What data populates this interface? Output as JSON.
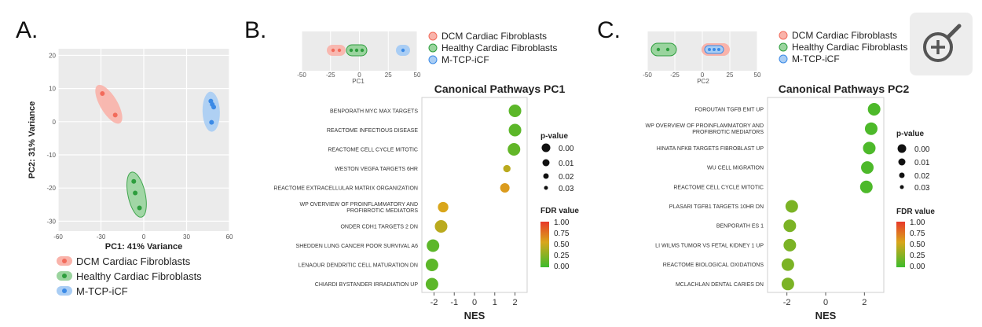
{
  "panels": {
    "a": {
      "letter": "A.",
      "xlabel": "PC1: 41% Variance",
      "ylabel": "PC2: 31% Variance",
      "xticks": [
        "-60",
        "-30",
        "0",
        "30",
        "60"
      ],
      "yticks": [
        "20",
        "10",
        "0",
        "-10",
        "-20",
        "-30"
      ],
      "legend": [
        "DCM Cardiac Fibroblasts",
        "Healthy Cardiac Fibroblasts",
        "M-TCP-iCF"
      ]
    },
    "b": {
      "letter": "B.",
      "mini_xlabel": "PC1",
      "mini_xticks": [
        "-50",
        "-25",
        "0",
        "25",
        "50"
      ],
      "legend": [
        "DCM Cardiac Fibroblasts",
        "Healthy Cardiac Fibroblasts",
        "M-TCP-iCF"
      ],
      "title": "Canonical Pathways PC1",
      "xlabel": "NES",
      "nes_ticks": [
        "-2",
        "-1",
        "0",
        "1",
        "2"
      ]
    },
    "c": {
      "letter": "C.",
      "mini_xlabel": "PC2",
      "mini_xticks": [
        "-50",
        "-25",
        "0",
        "25",
        "50"
      ],
      "legend": [
        "DCM Cardiac Fibroblasts",
        "Healthy Cardiac Fibroblasts",
        "M-TCP-iCF"
      ],
      "title": "Canonical Pathways PC2",
      "xlabel": "NES",
      "nes_ticks": [
        "-2",
        "0",
        "2"
      ]
    }
  },
  "keys": {
    "pvalue_title": "p-value",
    "pvalue_entries": [
      "0.00",
      "0.01",
      "0.02",
      "0.03"
    ],
    "fdr_title": "FDR value",
    "fdr_ticks": [
      "1.00",
      "0.75",
      "0.50",
      "0.25",
      "0.00"
    ]
  },
  "colors": {
    "dcm": "#f26b5b",
    "healthy": "#2e9e3e",
    "mtcp": "#3b8ae6",
    "fdr_high": "#e8392a",
    "fdr_mid": "#c9a21a",
    "fdr_low": "#3dbb2c"
  },
  "toolbar": {
    "zoom_icon": "zoom-in-icon"
  },
  "chart_data": [
    {
      "type": "scatter",
      "panel": "A",
      "xlabel": "PC1: 41% Variance",
      "ylabel": "PC2: 31% Variance",
      "xlim": [
        -60,
        60
      ],
      "ylim": [
        -33,
        22
      ],
      "series": [
        {
          "name": "DCM Cardiac Fibroblasts",
          "points": [
            [
              -29,
              8.5
            ],
            [
              -20,
              2
            ]
          ]
        },
        {
          "name": "Healthy Cardiac Fibroblasts",
          "points": [
            [
              -7,
              -18
            ],
            [
              -6,
              -21.5
            ],
            [
              -3,
              -26
            ]
          ]
        },
        {
          "name": "M-TCP-iCF",
          "points": [
            [
              47,
              6.2
            ],
            [
              48,
              5.2
            ],
            [
              49,
              4.4
            ],
            [
              47.5,
              -0.2
            ]
          ]
        }
      ]
    },
    {
      "type": "scatter",
      "panel": "B",
      "title": "Canonical Pathways PC1",
      "xlabel": "NES",
      "xlim": [
        -2.6,
        2.6
      ],
      "size_legend": "p-value",
      "color_legend": "FDR value",
      "pathways": [
        {
          "label": "BENPORATH MYC MAX TARGETS",
          "nes": 2.0,
          "pvalue": 0.0,
          "fdr": 0.1
        },
        {
          "label": "REACTOME INFECTIOUS DISEASE",
          "nes": 2.0,
          "pvalue": 0.0,
          "fdr": 0.1
        },
        {
          "label": "REACTOME CELL CYCLE MITOTIC",
          "nes": 1.95,
          "pvalue": 0.0,
          "fdr": 0.12
        },
        {
          "label": "WESTON VEGFA TARGETS 6HR",
          "nes": 1.6,
          "pvalue": 0.025,
          "fdr": 0.4
        },
        {
          "label": "REACTOME EXTRACELLULAR MATRIX ORGANIZATION",
          "nes": 1.5,
          "pvalue": 0.015,
          "fdr": 0.55
        },
        {
          "label": "WP OVERVIEW OF PROINFLAMMATORY AND PROFIBROTIC MEDIATORS",
          "nes": -1.55,
          "pvalue": 0.01,
          "fdr": 0.5
        },
        {
          "label": "ONDER CDH1 TARGETS 2 DN",
          "nes": -1.65,
          "pvalue": 0.0,
          "fdr": 0.4
        },
        {
          "label": "SHEDDEN LUNG CANCER POOR SURVIVAL A6",
          "nes": -2.05,
          "pvalue": 0.0,
          "fdr": 0.1
        },
        {
          "label": "LENAOUR DENDRITIC CELL MATURATION DN",
          "nes": -2.1,
          "pvalue": 0.0,
          "fdr": 0.1
        },
        {
          "label": "CHIARDI BYSTANDER IRRADIATION UP",
          "nes": -2.1,
          "pvalue": 0.0,
          "fdr": 0.1
        }
      ]
    },
    {
      "type": "scatter",
      "panel": "C",
      "title": "Canonical Pathways PC2",
      "xlabel": "NES",
      "xlim": [
        -3,
        3
      ],
      "size_legend": "p-value",
      "color_legend": "FDR value",
      "pathways": [
        {
          "label": "FOROUTAN TGFB EMT UP",
          "nes": 2.5,
          "pvalue": 0.0,
          "fdr": 0.05
        },
        {
          "label": "WP OVERVIEW OF PROINFLAMMATORY AND PROFIBROTIC MEDIATORS",
          "nes": 2.35,
          "pvalue": 0.0,
          "fdr": 0.05
        },
        {
          "label": "HINATA NFKB TARGETS FIBROBLAST UP",
          "nes": 2.25,
          "pvalue": 0.0,
          "fdr": 0.05
        },
        {
          "label": "WU CELL MIGRATION",
          "nes": 2.15,
          "pvalue": 0.0,
          "fdr": 0.05
        },
        {
          "label": "REACTOME CELL CYCLE MITOTIC",
          "nes": 2.1,
          "pvalue": 0.0,
          "fdr": 0.05
        },
        {
          "label": "PLASARI TGFB1 TARGETS 10HR DN",
          "nes": -1.75,
          "pvalue": 0.0,
          "fdr": 0.2
        },
        {
          "label": "BENPORATH ES 1",
          "nes": -1.85,
          "pvalue": 0.0,
          "fdr": 0.2
        },
        {
          "label": "LI WILMS TUMOR VS FETAL KIDNEY 1 UP",
          "nes": -1.85,
          "pvalue": 0.0,
          "fdr": 0.2
        },
        {
          "label": "REACTOME BIOLOGICAL OXIDATIONS",
          "nes": -1.95,
          "pvalue": 0.0,
          "fdr": 0.2
        },
        {
          "label": "MCLACHLAN DENTAL CARIES DN",
          "nes": -1.95,
          "pvalue": 0.0,
          "fdr": 0.2
        }
      ]
    }
  ]
}
